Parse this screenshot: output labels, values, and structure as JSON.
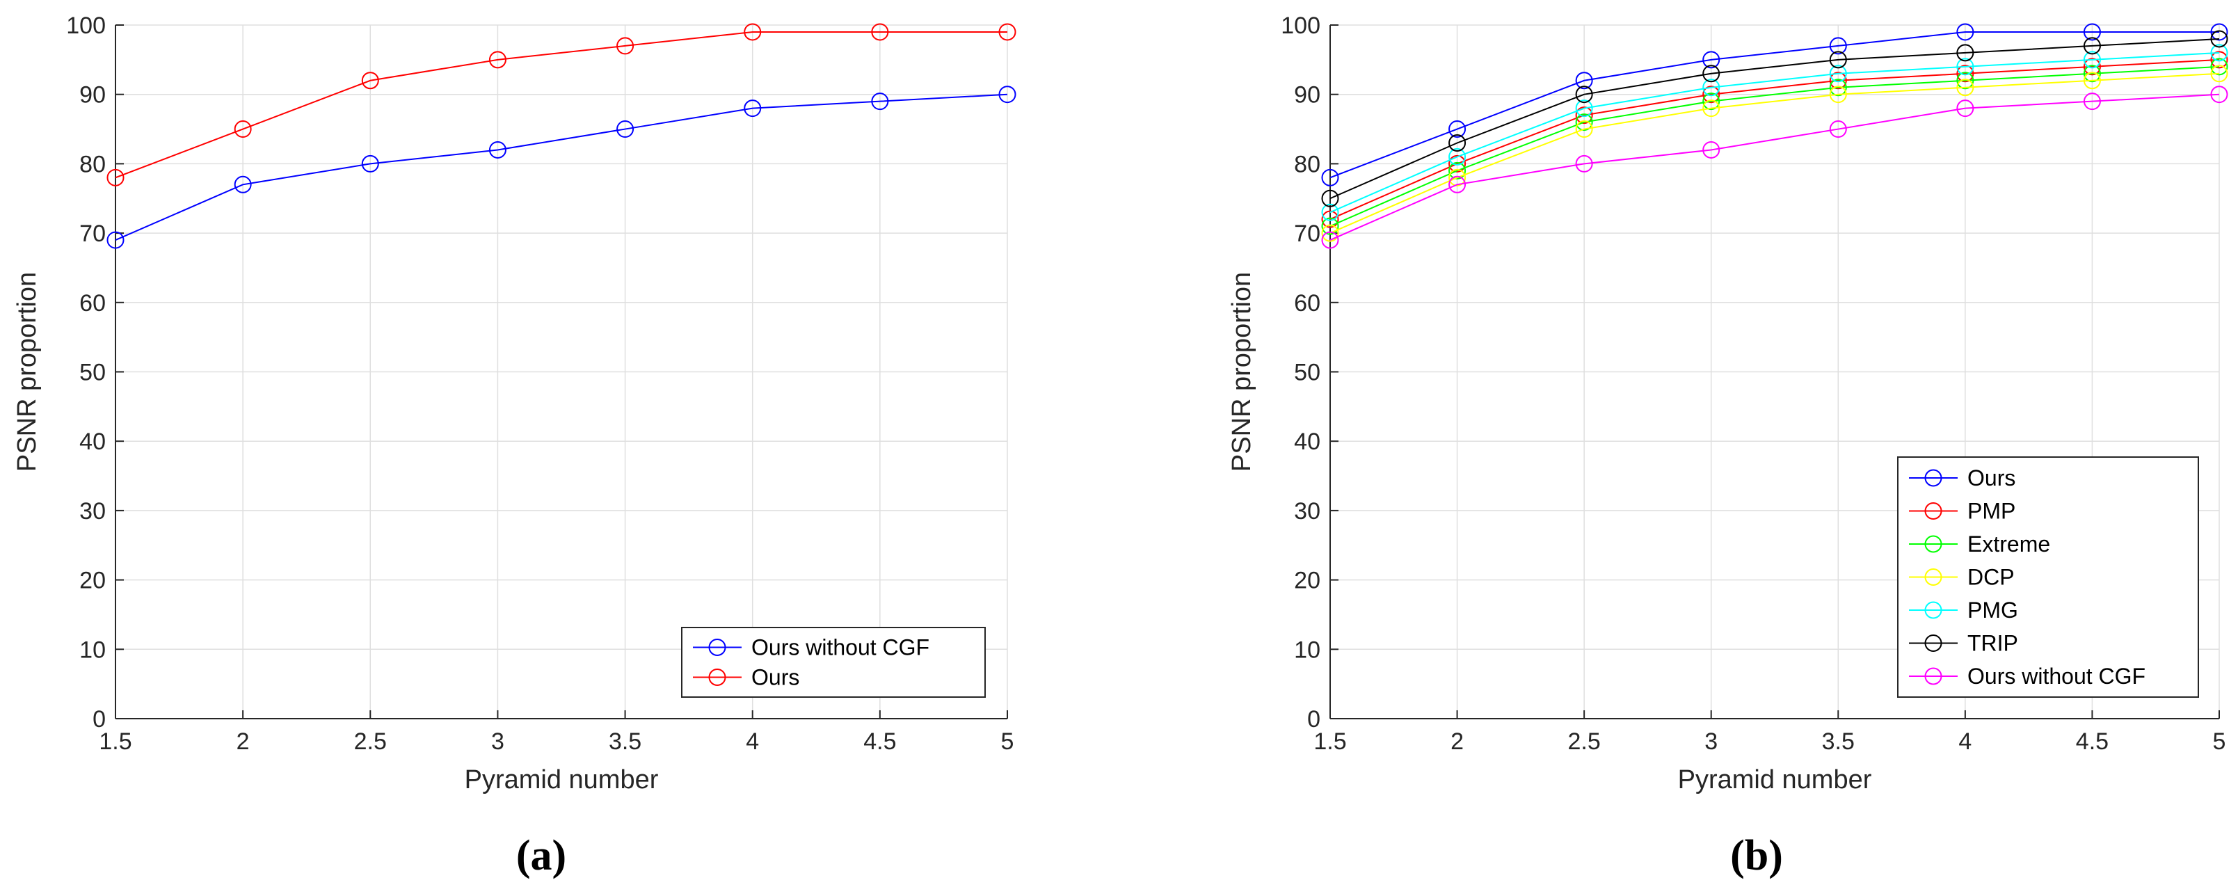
{
  "chart_data": [
    {
      "type": "line",
      "panel_label": "(a)",
      "xlabel": "Pyramid number",
      "ylabel": "PSNR proportion",
      "xlim": [
        1.5,
        5
      ],
      "ylim": [
        0,
        100
      ],
      "x_ticks": [
        "1.5",
        "2",
        "2.5",
        "3",
        "3.5",
        "4",
        "4.5",
        "5"
      ],
      "y_ticks": [
        "0",
        "10",
        "20",
        "30",
        "40",
        "50",
        "60",
        "70",
        "80",
        "90",
        "100"
      ],
      "grid": true,
      "legend_position": "bottom-right",
      "x": [
        1.5,
        2,
        2.5,
        3,
        3.5,
        4,
        4.5,
        5
      ],
      "series": [
        {
          "name": "Ours without CGF",
          "color": "#0000ff",
          "values": [
            69,
            77,
            80,
            82,
            85,
            88,
            89,
            90
          ]
        },
        {
          "name": "Ours",
          "color": "#ff0000",
          "values": [
            78,
            85,
            92,
            95,
            97,
            99,
            99,
            99
          ]
        }
      ]
    },
    {
      "type": "line",
      "panel_label": "(b)",
      "xlabel": "Pyramid number",
      "ylabel": "PSNR proportion",
      "xlim": [
        1.5,
        5
      ],
      "ylim": [
        0,
        100
      ],
      "x_ticks": [
        "1.5",
        "2",
        "2.5",
        "3",
        "3.5",
        "4",
        "4.5",
        "5"
      ],
      "y_ticks": [
        "0",
        "10",
        "20",
        "30",
        "40",
        "50",
        "60",
        "70",
        "80",
        "90",
        "100"
      ],
      "grid": true,
      "legend_position": "bottom-right",
      "x": [
        1.5,
        2,
        2.5,
        3,
        3.5,
        4,
        4.5,
        5
      ],
      "series": [
        {
          "name": "Ours",
          "color": "#0000ff",
          "values": [
            78,
            85,
            92,
            95,
            97,
            99,
            99,
            99
          ]
        },
        {
          "name": "PMP",
          "color": "#ff0000",
          "values": [
            72,
            80,
            87,
            90,
            92,
            93,
            94,
            95
          ]
        },
        {
          "name": "Extreme",
          "color": "#00ff00",
          "values": [
            71,
            79,
            86,
            89,
            91,
            92,
            93,
            94
          ]
        },
        {
          "name": "DCP",
          "color": "#ffff00",
          "values": [
            70,
            78,
            85,
            88,
            90,
            91,
            92,
            93
          ]
        },
        {
          "name": "PMG",
          "color": "#00ffff",
          "values": [
            73,
            81,
            88,
            91,
            93,
            94,
            95,
            96
          ]
        },
        {
          "name": "TRIP",
          "color": "#000000",
          "values": [
            75,
            83,
            90,
            93,
            95,
            96,
            97,
            98
          ]
        },
        {
          "name": "Ours without CGF",
          "color": "#ff00ff",
          "values": [
            69,
            77,
            80,
            82,
            85,
            88,
            89,
            90
          ]
        }
      ]
    }
  ]
}
